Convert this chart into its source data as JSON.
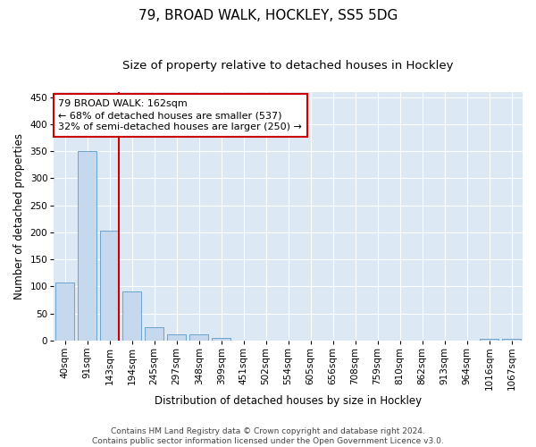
{
  "title": "79, BROAD WALK, HOCKLEY, SS5 5DG",
  "subtitle": "Size of property relative to detached houses in Hockley",
  "xlabel": "Distribution of detached houses by size in Hockley",
  "ylabel": "Number of detached properties",
  "categories": [
    "40sqm",
    "91sqm",
    "143sqm",
    "194sqm",
    "245sqm",
    "297sqm",
    "348sqm",
    "399sqm",
    "451sqm",
    "502sqm",
    "554sqm",
    "605sqm",
    "656sqm",
    "708sqm",
    "759sqm",
    "810sqm",
    "862sqm",
    "913sqm",
    "964sqm",
    "1016sqm",
    "1067sqm"
  ],
  "values": [
    107,
    350,
    203,
    90,
    25,
    12,
    11,
    5,
    0,
    0,
    0,
    0,
    0,
    0,
    0,
    0,
    0,
    0,
    0,
    3,
    3
  ],
  "bar_color": "#c5d8ed",
  "bar_edge_color": "#5a9ac8",
  "vline_color": "#cc0000",
  "annotation_line1": "79 BROAD WALK: 162sqm",
  "annotation_line2": "← 68% of detached houses are smaller (537)",
  "annotation_line3": "32% of semi-detached houses are larger (250) →",
  "annotation_box_color": "#ffffff",
  "annotation_box_edge_color": "#cc0000",
  "ylim": [
    0,
    460
  ],
  "yticks": [
    0,
    50,
    100,
    150,
    200,
    250,
    300,
    350,
    400,
    450
  ],
  "plot_background": "#dce9f5",
  "footer_line1": "Contains HM Land Registry data © Crown copyright and database right 2024.",
  "footer_line2": "Contains public sector information licensed under the Open Government Licence v3.0.",
  "title_fontsize": 11,
  "subtitle_fontsize": 9.5,
  "axis_label_fontsize": 8.5,
  "tick_fontsize": 7.5,
  "annotation_fontsize": 8,
  "footer_fontsize": 6.5
}
